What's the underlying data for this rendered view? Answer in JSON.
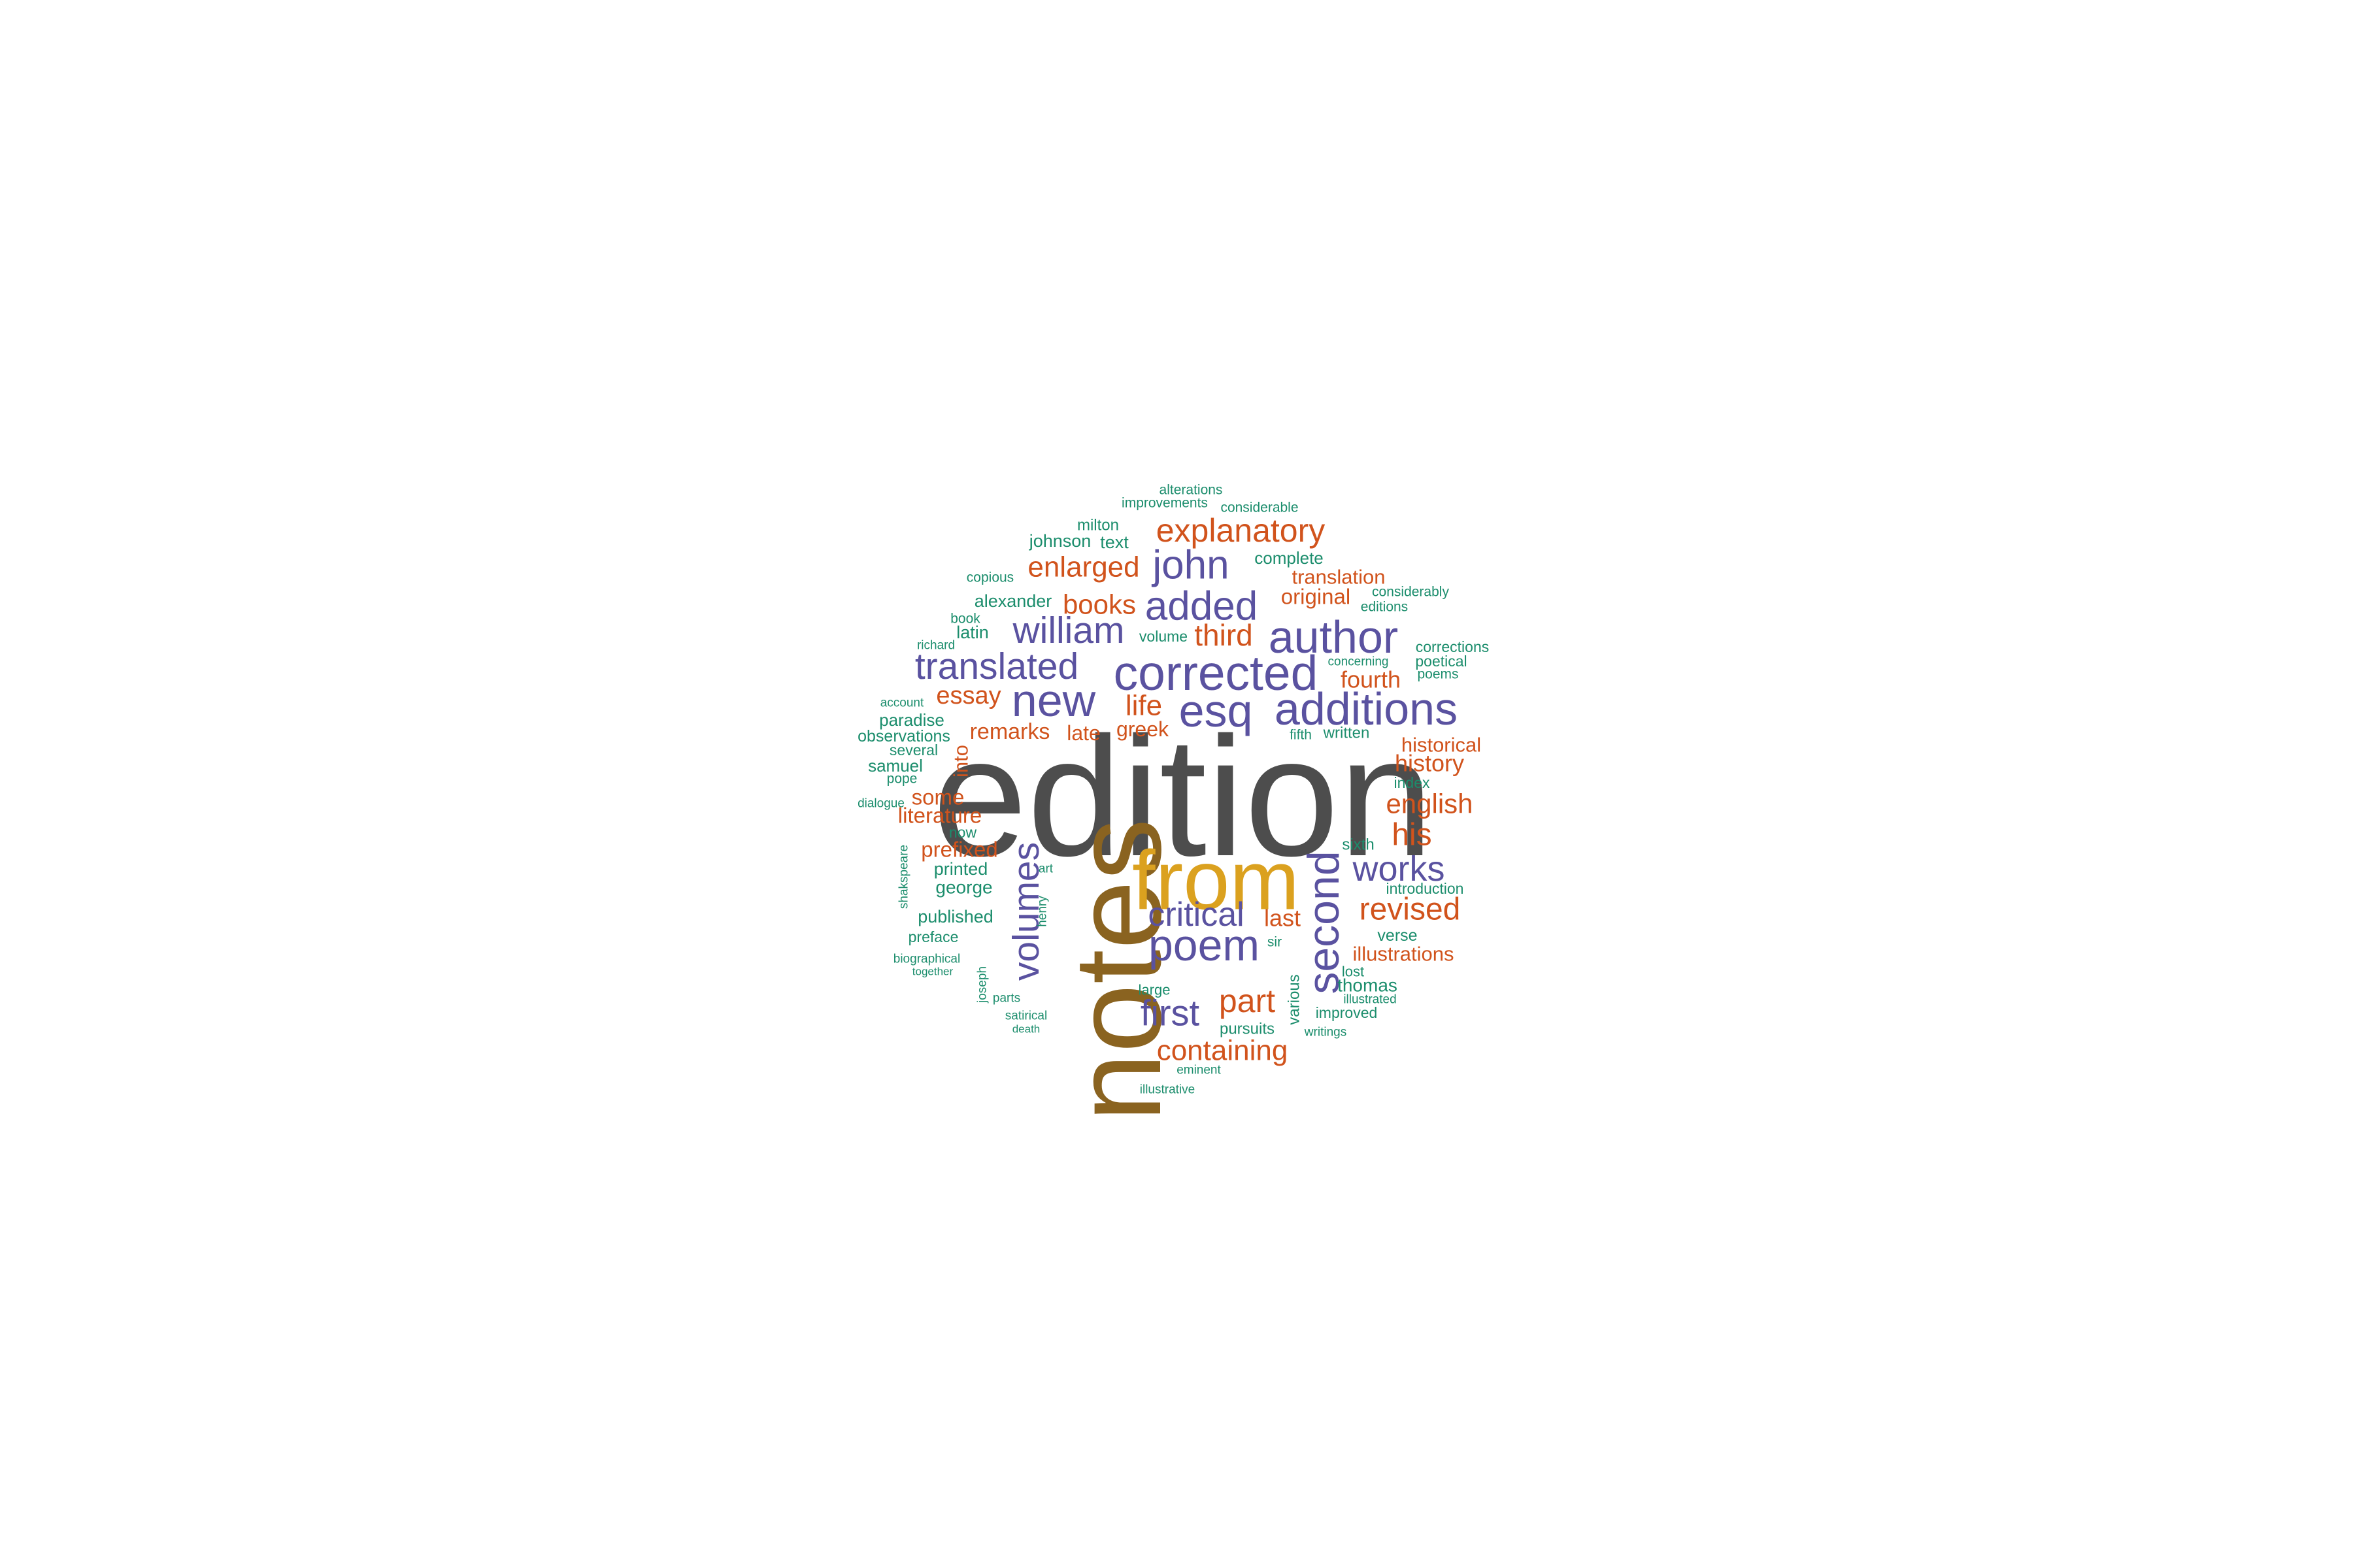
{
  "colors": {
    "gray": "#4d4d4d",
    "gold": "#dba11f",
    "brown": "#8a6320",
    "purple": "#5a52a0",
    "orange": "#d1531c",
    "green": "#1b8d6c"
  },
  "words": [
    {
      "text": "edition",
      "color": "gray"
    },
    {
      "text": "notes",
      "color": "brown"
    },
    {
      "text": "from",
      "color": "gold"
    },
    {
      "text": "corrected",
      "color": "purple"
    },
    {
      "text": "additions",
      "color": "purple"
    },
    {
      "text": "author",
      "color": "purple"
    },
    {
      "text": "new",
      "color": "purple"
    },
    {
      "text": "esq",
      "color": "purple"
    },
    {
      "text": "added",
      "color": "purple"
    },
    {
      "text": "john",
      "color": "purple"
    },
    {
      "text": "translated",
      "color": "purple"
    },
    {
      "text": "william",
      "color": "purple"
    },
    {
      "text": "poem",
      "color": "purple"
    },
    {
      "text": "second",
      "color": "purple"
    },
    {
      "text": "volumes",
      "color": "purple"
    },
    {
      "text": "works",
      "color": "purple"
    },
    {
      "text": "critical",
      "color": "purple"
    },
    {
      "text": "first",
      "color": "purple"
    },
    {
      "text": "explanatory",
      "color": "orange"
    },
    {
      "text": "enlarged",
      "color": "orange"
    },
    {
      "text": "books",
      "color": "orange"
    },
    {
      "text": "third",
      "color": "orange"
    },
    {
      "text": "life",
      "color": "orange"
    },
    {
      "text": "essay",
      "color": "orange"
    },
    {
      "text": "remarks",
      "color": "orange"
    },
    {
      "text": "late",
      "color": "orange"
    },
    {
      "text": "greek",
      "color": "orange"
    },
    {
      "text": "translation",
      "color": "orange"
    },
    {
      "text": "original",
      "color": "orange"
    },
    {
      "text": "fourth",
      "color": "orange"
    },
    {
      "text": "historical",
      "color": "orange"
    },
    {
      "text": "history",
      "color": "orange"
    },
    {
      "text": "english",
      "color": "orange"
    },
    {
      "text": "his",
      "color": "orange"
    },
    {
      "text": "revised",
      "color": "orange"
    },
    {
      "text": "illustrations",
      "color": "orange"
    },
    {
      "text": "last",
      "color": "orange"
    },
    {
      "text": "part",
      "color": "orange"
    },
    {
      "text": "containing",
      "color": "orange"
    },
    {
      "text": "into",
      "color": "orange"
    },
    {
      "text": "some",
      "color": "orange"
    },
    {
      "text": "literature",
      "color": "orange"
    },
    {
      "text": "prefixed",
      "color": "orange"
    },
    {
      "text": "alterations",
      "color": "green"
    },
    {
      "text": "improvements",
      "color": "green"
    },
    {
      "text": "considerable",
      "color": "green"
    },
    {
      "text": "milton",
      "color": "green"
    },
    {
      "text": "johnson",
      "color": "green"
    },
    {
      "text": "text",
      "color": "green"
    },
    {
      "text": "copious",
      "color": "green"
    },
    {
      "text": "complete",
      "color": "green"
    },
    {
      "text": "alexander",
      "color": "green"
    },
    {
      "text": "book",
      "color": "green"
    },
    {
      "text": "latin",
      "color": "green"
    },
    {
      "text": "volume",
      "color": "green"
    },
    {
      "text": "considerably",
      "color": "green"
    },
    {
      "text": "editions",
      "color": "green"
    },
    {
      "text": "richard",
      "color": "green"
    },
    {
      "text": "concerning",
      "color": "green"
    },
    {
      "text": "corrections",
      "color": "green"
    },
    {
      "text": "poetical",
      "color": "green"
    },
    {
      "text": "poems",
      "color": "green"
    },
    {
      "text": "account",
      "color": "green"
    },
    {
      "text": "paradise",
      "color": "green"
    },
    {
      "text": "observations",
      "color": "green"
    },
    {
      "text": "several",
      "color": "green"
    },
    {
      "text": "samuel",
      "color": "green"
    },
    {
      "text": "pope",
      "color": "green"
    },
    {
      "text": "fifth",
      "color": "green"
    },
    {
      "text": "written",
      "color": "green"
    },
    {
      "text": "index",
      "color": "green"
    },
    {
      "text": "dialogue",
      "color": "green"
    },
    {
      "text": "now",
      "color": "green"
    },
    {
      "text": "shakspeare",
      "color": "green"
    },
    {
      "text": "printed",
      "color": "green"
    },
    {
      "text": "george",
      "color": "green"
    },
    {
      "text": "art",
      "color": "green"
    },
    {
      "text": "henry",
      "color": "green"
    },
    {
      "text": "sixth",
      "color": "green"
    },
    {
      "text": "introduction",
      "color": "green"
    },
    {
      "text": "published",
      "color": "green"
    },
    {
      "text": "preface",
      "color": "green"
    },
    {
      "text": "verse",
      "color": "green"
    },
    {
      "text": "sir",
      "color": "green"
    },
    {
      "text": "lost",
      "color": "green"
    },
    {
      "text": "thomas",
      "color": "green"
    },
    {
      "text": "illustrated",
      "color": "green"
    },
    {
      "text": "biographical",
      "color": "green"
    },
    {
      "text": "together",
      "color": "green"
    },
    {
      "text": "joseph",
      "color": "green"
    },
    {
      "text": "various",
      "color": "green"
    },
    {
      "text": "large",
      "color": "green"
    },
    {
      "text": "improved",
      "color": "green"
    },
    {
      "text": "parts",
      "color": "green"
    },
    {
      "text": "satirical",
      "color": "green"
    },
    {
      "text": "death",
      "color": "green"
    },
    {
      "text": "pursuits",
      "color": "green"
    },
    {
      "text": "writings",
      "color": "green"
    },
    {
      "text": "eminent",
      "color": "green"
    },
    {
      "text": "illustrative",
      "color": "green"
    }
  ]
}
